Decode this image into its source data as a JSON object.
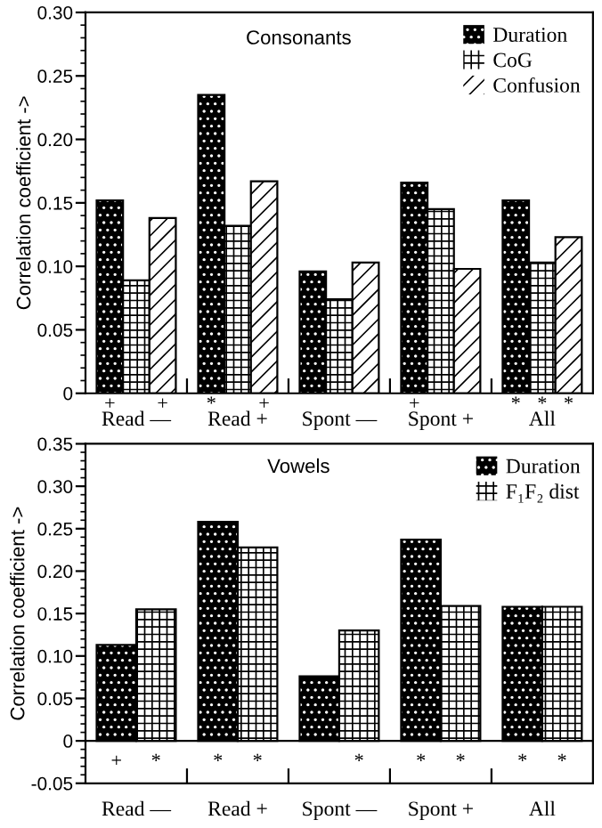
{
  "chart_data": [
    {
      "type": "bar",
      "title": "Consonants",
      "ylabel": "Correlation coefficient ->",
      "categories": [
        "Read —",
        "Read +",
        "Spont —",
        "Spont +",
        "All"
      ],
      "series": [
        {
          "name": "Duration",
          "color": "#000000",
          "values": [
            0.152,
            0.235,
            0.096,
            0.166,
            0.152
          ],
          "value_labels": [
            "+",
            "*",
            null,
            "+",
            "*"
          ]
        },
        {
          "name": "CoG",
          "color": "#ffffff",
          "values": [
            0.089,
            0.132,
            0.074,
            0.145,
            0.103
          ],
          "value_labels": [
            null,
            null,
            null,
            null,
            "*"
          ]
        },
        {
          "name": "Confusion",
          "color": "#ffffff",
          "values": [
            0.138,
            0.167,
            0.103,
            0.098,
            0.123
          ],
          "value_labels": [
            "+",
            "+",
            null,
            null,
            "*"
          ]
        }
      ],
      "ylim": [
        0,
        0.3
      ],
      "yticks": [
        0,
        0.05,
        {
          "value": 0.1,
          "label": "0.10"
        },
        0.15,
        {
          "value": 0.2,
          "label": "0.20"
        },
        0.25,
        {
          "value": 0.3,
          "label": "0.30"
        }
      ],
      "legend": "top right",
      "grid": false
    },
    {
      "type": "bar",
      "title": "Vowels",
      "ylabel": "Correlation coefficient ->",
      "categories": [
        "Read —",
        "Read +",
        "Spont —",
        "Spont +",
        "All"
      ],
      "series": [
        {
          "name": "Duration",
          "color": "#000000",
          "values": [
            0.113,
            0.258,
            0.076,
            0.237,
            0.158
          ],
          "value_labels": [
            "+",
            "*",
            null,
            "*",
            "*"
          ]
        },
        {
          "name": "F₁F₂ dist",
          "color": "#ffffff",
          "values": [
            0.155,
            0.228,
            0.13,
            0.159,
            0.158
          ],
          "value_labels": [
            "*",
            "*",
            "*",
            "*",
            "*"
          ]
        }
      ],
      "ylim": [
        -0.05,
        0.35
      ],
      "yticks": [
        -0.05,
        0,
        0.05,
        {
          "value": 0.1,
          "label": "0.10"
        },
        0.15,
        {
          "value": 0.2,
          "label": "0.20"
        },
        0.25,
        {
          "value": 0.3,
          "label": "0.30"
        },
        0.35
      ],
      "ref_lines": [
        {
          "axis": "y",
          "value": 0,
          "color": "#000000"
        }
      ],
      "legend": "top right",
      "grid": false
    }
  ]
}
